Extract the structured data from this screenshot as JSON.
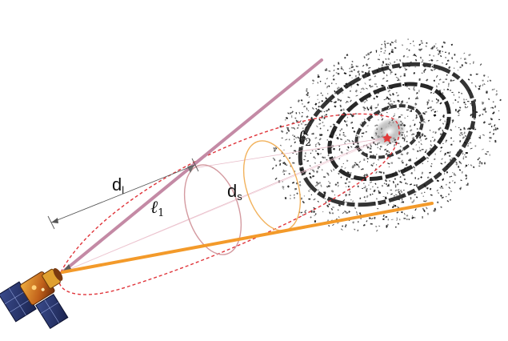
{
  "labels": {
    "d_l": "d",
    "d_l_sub": "l",
    "d_s": "d",
    "d_s_sub": "s",
    "ell1": "ℓ",
    "ell1_sub": "1",
    "ell2": "ℓ",
    "ell2_sub": "2"
  },
  "colors": {
    "ray_to_galaxy_center": "#c48aa5",
    "ray_to_galaxy_edge": "#f39a2a",
    "ellipse_outline": "#e0343a",
    "lens_plane_circle": "#d49aa0",
    "source_plane_circle": "#f2b25c",
    "dimension_lines": "#555555",
    "galaxy_ink": "#111111",
    "galaxy_core": "#e23a3a"
  },
  "icons": {
    "observer": "satellite-icon",
    "source": "spiral-galaxy-icon"
  }
}
